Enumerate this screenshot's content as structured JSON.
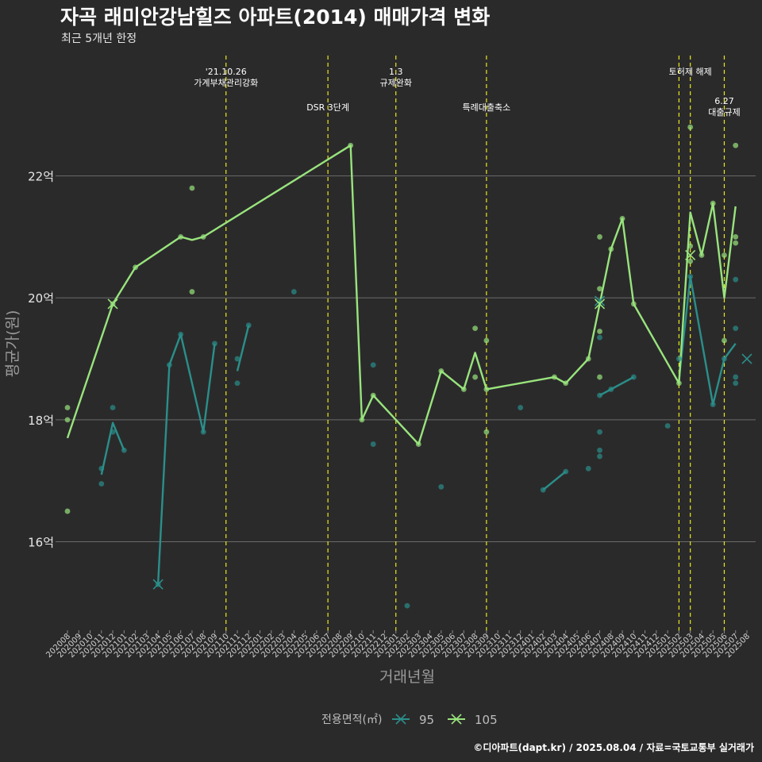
{
  "header": {
    "title": "자곡 래미안강남힐즈 아파트(2014) 매매가격 변화",
    "subtitle": "최근 5개년 한정"
  },
  "footer": {
    "caption": "©디아파트(dapt.kr) / 2025.08.04 / 자료=국토교통부 실거래가"
  },
  "colors": {
    "background": "#2b2a2b",
    "grid": "#6b6b6b",
    "series_95": "#2a8f8a",
    "series_105": "#98e47c",
    "events": "#e8e81a"
  },
  "chart_data": {
    "type": "line",
    "title": "자곡 래미안강남힐즈 아파트(2014) 매매가격 변화",
    "subtitle": "최근 5개년 한정",
    "xlabel": "거래년월",
    "ylabel": "평균가(원)",
    "ylim": [
      14.6,
      24.0
    ],
    "yticks": [
      16,
      18,
      20,
      22
    ],
    "ytick_labels": [
      "16억",
      "18억",
      "20억",
      "22억"
    ],
    "grid": true,
    "legend_title": "전용면적(㎡)",
    "legend_position": "bottom",
    "x_categories": [
      "202008",
      "202009",
      "202010",
      "202011",
      "202012",
      "202101",
      "202102",
      "202103",
      "202104",
      "202105",
      "202106",
      "202107",
      "202108",
      "202109",
      "202110",
      "202111",
      "202112",
      "202201",
      "202202",
      "202203",
      "202204",
      "202205",
      "202206",
      "202207",
      "202208",
      "202209",
      "202210",
      "202211",
      "202212",
      "202301",
      "202302",
      "202303",
      "202304",
      "202305",
      "202306",
      "202307",
      "202308",
      "202309",
      "202310",
      "202311",
      "202312",
      "202401",
      "202402",
      "202403",
      "202404",
      "202405",
      "202406",
      "202407",
      "202408",
      "202409",
      "202410",
      "202411",
      "202412",
      "202501",
      "202502",
      "202503",
      "202504",
      "202505",
      "202506",
      "202507",
      "202508"
    ],
    "events": [
      {
        "x": "202110",
        "label": "'21.10.26\n가계부채관리강화",
        "row": 0
      },
      {
        "x": "202207",
        "label": "DSR 3단계",
        "row": 1
      },
      {
        "x": "202301",
        "label": "1.3\n규제완화",
        "row": 0
      },
      {
        "x": "202309",
        "label": "특례대출축소",
        "row": 1
      },
      {
        "x": "202502",
        "label": "",
        "row": 0
      },
      {
        "x": "202503",
        "label": "토허제 해제",
        "row": 0
      },
      {
        "x": "202506",
        "label": "6.27\n대출규제",
        "row": 1
      }
    ],
    "series": [
      {
        "name": "95",
        "color": "#2a8f8a",
        "segments": [
          [
            [
              "202011",
              17.1
            ],
            [
              "202012",
              17.95
            ],
            [
              "202101",
              17.5
            ]
          ],
          [
            [
              "202104",
              15.3
            ],
            [
              "202105",
              18.9
            ],
            [
              "202106",
              19.4
            ],
            [
              "202108",
              17.8
            ],
            [
              "202109",
              19.25
            ]
          ],
          [
            [
              "202111",
              18.8
            ],
            [
              "202112",
              19.55
            ]
          ],
          [
            [
              "202402",
              16.85
            ],
            [
              "202404",
              17.15
            ]
          ],
          [
            [
              "202407",
              18.4
            ],
            [
              "202408",
              18.5
            ],
            [
              "202410",
              18.7
            ]
          ],
          [
            [
              "202502",
              18.65
            ],
            [
              "202503",
              20.35
            ],
            [
              "202505",
              18.25
            ],
            [
              "202506",
              19.0
            ],
            [
              "202507",
              19.25
            ]
          ]
        ],
        "points": [
          [
            "202011",
            17.2
          ],
          [
            "202011",
            16.95
          ],
          [
            "202012",
            18.2
          ],
          [
            "202012",
            17.8
          ],
          [
            "202101",
            17.5
          ],
          [
            "202104",
            15.3
          ],
          [
            "202105",
            18.9
          ],
          [
            "202106",
            19.4
          ],
          [
            "202108",
            17.8
          ],
          [
            "202109",
            19.25
          ],
          [
            "202111",
            19.0
          ],
          [
            "202111",
            18.6
          ],
          [
            "202112",
            19.55
          ],
          [
            "202204",
            20.1
          ],
          [
            "202211",
            18.9
          ],
          [
            "202211",
            17.6
          ],
          [
            "202302",
            14.95
          ],
          [
            "202305",
            16.9
          ],
          [
            "202312",
            18.2
          ],
          [
            "202402",
            16.85
          ],
          [
            "202404",
            17.15
          ],
          [
            "202406",
            17.2
          ],
          [
            "202407",
            19.35
          ],
          [
            "202407",
            17.8
          ],
          [
            "202407",
            17.5
          ],
          [
            "202407",
            17.4
          ],
          [
            "202407",
            18.4
          ],
          [
            "202408",
            18.5
          ],
          [
            "202410",
            18.7
          ],
          [
            "202501",
            17.9
          ],
          [
            "202502",
            19.0
          ],
          [
            "202503",
            20.35
          ],
          [
            "202505",
            18.25
          ],
          [
            "202506",
            19.0
          ],
          [
            "202507",
            20.3
          ],
          [
            "202507",
            19.5
          ],
          [
            "202507",
            18.7
          ],
          [
            "202507",
            18.6
          ]
        ],
        "mean_marks": [
          [
            "202104",
            15.3
          ],
          [
            "202407",
            19.95
          ],
          [
            "202508",
            19.0
          ]
        ]
      },
      {
        "name": "105",
        "color": "#98e47c",
        "segments": [
          [
            [
              "202008",
              17.7
            ],
            [
              "202012",
              19.9
            ],
            [
              "202102",
              20.5
            ],
            [
              "202106",
              21.0
            ],
            [
              "202107",
              20.95
            ],
            [
              "202108",
              21.0
            ],
            [
              "202209",
              22.5
            ],
            [
              "202210",
              18.0
            ],
            [
              "202211",
              18.4
            ],
            [
              "202303",
              17.6
            ],
            [
              "202305",
              18.8
            ],
            [
              "202307",
              18.5
            ],
            [
              "202308",
              19.1
            ],
            [
              "202309",
              18.5
            ],
            [
              "202403",
              18.7
            ],
            [
              "202404",
              18.6
            ],
            [
              "202406",
              19.0
            ],
            [
              "202408",
              20.8
            ],
            [
              "202409",
              21.3
            ],
            [
              "202410",
              19.9
            ],
            [
              "202502",
              18.6
            ],
            [
              "202503",
              21.4
            ],
            [
              "202504",
              20.7
            ],
            [
              "202505",
              21.55
            ],
            [
              "202506",
              20.0
            ],
            [
              "202507",
              21.5
            ]
          ]
        ],
        "points": [
          [
            "202008",
            18.2
          ],
          [
            "202008",
            18.0
          ],
          [
            "202008",
            16.5
          ],
          [
            "202012",
            19.9
          ],
          [
            "202102",
            20.5
          ],
          [
            "202106",
            21.0
          ],
          [
            "202107",
            21.8
          ],
          [
            "202107",
            20.1
          ],
          [
            "202108",
            21.0
          ],
          [
            "202209",
            22.5
          ],
          [
            "202210",
            18.0
          ],
          [
            "202211",
            18.4
          ],
          [
            "202303",
            17.6
          ],
          [
            "202305",
            18.8
          ],
          [
            "202307",
            18.5
          ],
          [
            "202308",
            19.5
          ],
          [
            "202308",
            18.7
          ],
          [
            "202309",
            19.3
          ],
          [
            "202309",
            18.5
          ],
          [
            "202309",
            17.8
          ],
          [
            "202403",
            18.7
          ],
          [
            "202404",
            18.6
          ],
          [
            "202406",
            19.0
          ],
          [
            "202407",
            21.0
          ],
          [
            "202407",
            20.15
          ],
          [
            "202407",
            19.45
          ],
          [
            "202407",
            18.7
          ],
          [
            "202408",
            20.8
          ],
          [
            "202409",
            21.3
          ],
          [
            "202410",
            19.9
          ],
          [
            "202502",
            18.6
          ],
          [
            "202503",
            22.8
          ],
          [
            "202503",
            20.85
          ],
          [
            "202503",
            20.6
          ],
          [
            "202504",
            20.7
          ],
          [
            "202505",
            21.55
          ],
          [
            "202506",
            20.7
          ],
          [
            "202506",
            19.3
          ],
          [
            "202507",
            22.5
          ],
          [
            "202507",
            21.0
          ],
          [
            "202507",
            20.9
          ]
        ],
        "mean_marks": [
          [
            "202012",
            19.9
          ],
          [
            "202407",
            19.9
          ],
          [
            "202503",
            20.7
          ]
        ]
      }
    ]
  }
}
